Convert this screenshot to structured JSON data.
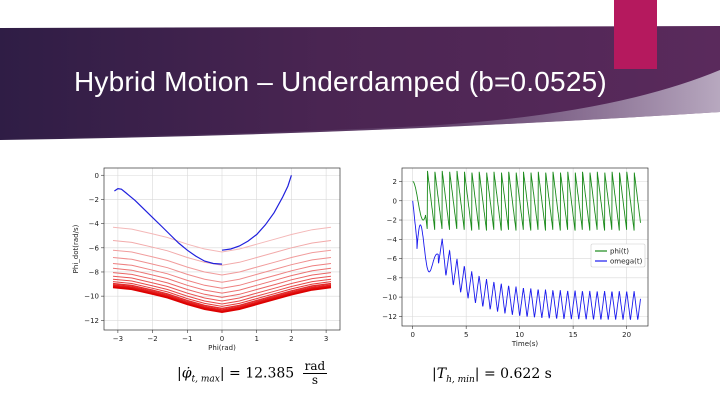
{
  "slide": {
    "title": "Hybrid Motion – Underdamped (b=0.0525)",
    "colors": {
      "banner_dark": "#2f1d45",
      "banner_mid": "#5a2a5c",
      "accent": "#b5195e"
    }
  },
  "chart_data": [
    {
      "type": "line",
      "title": "",
      "xlabel": "Phi(rad)",
      "ylabel": "Phi_dot(rad/s)",
      "xlim": [
        -3.4,
        3.4
      ],
      "ylim": [
        -12.8,
        0.6
      ],
      "xticks": [
        -3,
        -2,
        -1,
        0,
        1,
        2,
        3
      ],
      "yticks": [
        0,
        -2,
        -4,
        -6,
        -8,
        -10,
        -12
      ],
      "grid": true,
      "series": [
        {
          "color": "#1f1fdd",
          "x": [
            -3.1,
            -3.0,
            -2.9,
            -2.75,
            -2.5,
            -2.25,
            -2.0,
            -1.75,
            -1.5,
            -1.25,
            -1.0,
            -0.75,
            -0.5,
            -0.25,
            0.0
          ],
          "y": [
            -1.3,
            -1.1,
            -1.15,
            -1.5,
            -2.1,
            -2.8,
            -3.5,
            -4.2,
            -4.9,
            -5.6,
            -6.2,
            -6.7,
            -7.1,
            -7.3,
            -7.35
          ]
        },
        {
          "color": "#1f1fdd",
          "x": [
            0.0,
            0.25,
            0.5,
            0.75,
            1.0,
            1.25,
            1.5,
            1.75,
            1.9,
            2.0
          ],
          "y": [
            -6.2,
            -6.1,
            -5.85,
            -5.45,
            -4.9,
            -4.1,
            -3.1,
            -1.8,
            -0.9,
            0.0
          ]
        }
      ],
      "family": {
        "count": 14,
        "x": [
          -3.14,
          -2.6,
          -2.0,
          -1.57,
          -1.0,
          -0.5,
          0.0,
          0.5,
          1.0,
          1.57,
          2.0,
          2.6,
          3.14
        ],
        "shape": [
          0.0,
          -0.15,
          -0.55,
          -0.85,
          -1.4,
          -1.8,
          -2.05,
          -1.8,
          -1.4,
          -0.95,
          -0.6,
          -0.2,
          0.0
        ],
        "offsets": [
          -4.3,
          -5.4,
          -6.2,
          -6.8,
          -7.3,
          -7.7,
          -8.05,
          -8.35,
          -8.6,
          -8.8,
          -8.97,
          -9.1,
          -9.2,
          -9.28
        ],
        "colors": [
          "#f4b8b8",
          "#f2aaaa",
          "#f19c9c",
          "#ef8e8e",
          "#ee8080",
          "#ec7272",
          "#ea6464",
          "#e95656",
          "#e74848",
          "#e53a3a",
          "#e42c2c",
          "#e21e1e",
          "#e01010",
          "#dd0000"
        ]
      }
    },
    {
      "type": "line",
      "title": "",
      "xlabel": "Time(s)",
      "ylabel": "",
      "xlim": [
        -1.0,
        22.0
      ],
      "ylim": [
        -13.0,
        3.4
      ],
      "xticks": [
        0,
        5,
        10,
        15,
        20
      ],
      "yticks": [
        2,
        0,
        -2,
        -4,
        -6,
        -8,
        -10,
        -12
      ],
      "grid": true,
      "legend": {
        "position": "center-right",
        "entries": [
          "phi(t)",
          "omega(t)"
        ]
      },
      "series": [
        {
          "name": "phi(t)",
          "color": "#1a8a1a",
          "period_s": 0.69,
          "min": -3.1,
          "max": 3.1,
          "t_end": 21.3
        },
        {
          "name": "omega(t)",
          "color": "#1a1aee",
          "period_s": 0.69,
          "settle_min": -12.4,
          "settle_max": -9.4,
          "t_end": 21.3
        }
      ]
    }
  ],
  "formulas": {
    "left_lhs": "|φ̇",
    "left_sub": "t, max",
    "left_rhs": "| = 12.385",
    "left_num": "rad",
    "left_den": "s",
    "right_lhs": "|T",
    "right_sub": "h, min",
    "right_rhs": "| = 0.622 s"
  }
}
